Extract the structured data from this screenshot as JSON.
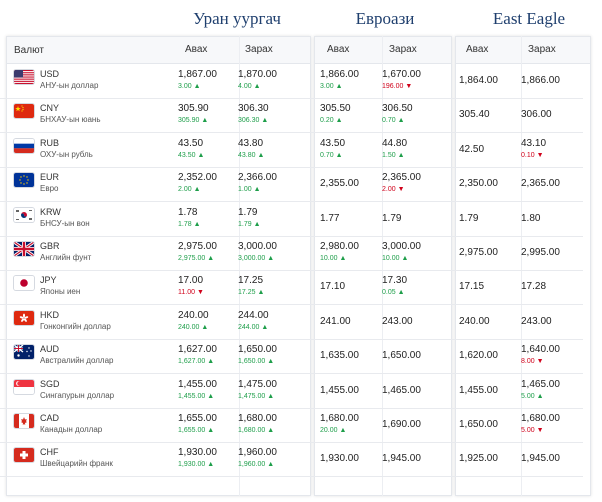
{
  "banks": [
    {
      "name": "Уран уургач",
      "buy_label": "Авах",
      "sell_label": "Зарах"
    },
    {
      "name": "Евроази",
      "buy_label": "Авах",
      "sell_label": "Зарах"
    },
    {
      "name": "East Eagle",
      "buy_label": "Авах",
      "sell_label": "Зарах"
    }
  ],
  "currency_header": "Валют",
  "rows": [
    {
      "code": "USD",
      "name": "АНУ-ын доллар",
      "flag_icon": "us-flag-icon",
      "b1_buy": "1,867.00",
      "b1_buy_chg": "3.00",
      "b1_buy_dir": "up",
      "b1_sell": "1,870.00",
      "b1_sell_chg": "4.00",
      "b1_sell_dir": "up",
      "b2_buy": "1,866.00",
      "b2_buy_chg": "3.00",
      "b2_buy_dir": "up",
      "b2_sell": "1,670.00",
      "b2_sell_chg": "196.00",
      "b2_sell_dir": "down",
      "b3_buy": "1,864.00",
      "b3_buy_chg": "",
      "b3_buy_dir": "",
      "b3_sell": "1,866.00",
      "b3_sell_chg": "",
      "b3_sell_dir": ""
    },
    {
      "code": "CNY",
      "name": "БНХАУ-ын юань",
      "flag_icon": "cn-flag-icon",
      "b1_buy": "305.90",
      "b1_buy_chg": "305.90",
      "b1_buy_dir": "up",
      "b1_sell": "306.30",
      "b1_sell_chg": "306.30",
      "b1_sell_dir": "up",
      "b2_buy": "305.50",
      "b2_buy_chg": "0.20",
      "b2_buy_dir": "up",
      "b2_sell": "306.50",
      "b2_sell_chg": "0.70",
      "b2_sell_dir": "up",
      "b3_buy": "305.40",
      "b3_buy_chg": "",
      "b3_buy_dir": "",
      "b3_sell": "306.00",
      "b3_sell_chg": "",
      "b3_sell_dir": ""
    },
    {
      "code": "RUB",
      "name": "ОХУ-ын рубль",
      "flag_icon": "ru-flag-icon",
      "b1_buy": "43.50",
      "b1_buy_chg": "43.50",
      "b1_buy_dir": "up",
      "b1_sell": "43.80",
      "b1_sell_chg": "43.80",
      "b1_sell_dir": "up",
      "b2_buy": "43.50",
      "b2_buy_chg": "0.70",
      "b2_buy_dir": "up",
      "b2_sell": "44.80",
      "b2_sell_chg": "1.50",
      "b2_sell_dir": "up",
      "b3_buy": "42.50",
      "b3_buy_chg": "",
      "b3_buy_dir": "",
      "b3_sell": "43.10",
      "b3_sell_chg": "0.10",
      "b3_sell_dir": "down"
    },
    {
      "code": "EUR",
      "name": "Евро",
      "flag_icon": "eu-flag-icon",
      "b1_buy": "2,352.00",
      "b1_buy_chg": "2.00",
      "b1_buy_dir": "up",
      "b1_sell": "2,366.00",
      "b1_sell_chg": "1.00",
      "b1_sell_dir": "up",
      "b2_buy": "2,355.00",
      "b2_buy_chg": "",
      "b2_buy_dir": "",
      "b2_sell": "2,365.00",
      "b2_sell_chg": "2.00",
      "b2_sell_dir": "down",
      "b3_buy": "2,350.00",
      "b3_buy_chg": "",
      "b3_buy_dir": "",
      "b3_sell": "2,365.00",
      "b3_sell_chg": "",
      "b3_sell_dir": ""
    },
    {
      "code": "KRW",
      "name": "БНСУ-ын вон",
      "flag_icon": "kr-flag-icon",
      "b1_buy": "1.78",
      "b1_buy_chg": "1.78",
      "b1_buy_dir": "up",
      "b1_sell": "1.79",
      "b1_sell_chg": "1.79",
      "b1_sell_dir": "up",
      "b2_buy": "1.77",
      "b2_buy_chg": "",
      "b2_buy_dir": "",
      "b2_sell": "1.79",
      "b2_sell_chg": "",
      "b2_sell_dir": "",
      "b3_buy": "1.79",
      "b3_buy_chg": "",
      "b3_buy_dir": "",
      "b3_sell": "1.80",
      "b3_sell_chg": "",
      "b3_sell_dir": ""
    },
    {
      "code": "GBR",
      "name": "Английн фунт",
      "flag_icon": "gb-flag-icon",
      "b1_buy": "2,975.00",
      "b1_buy_chg": "2,975.00",
      "b1_buy_dir": "up",
      "b1_sell": "3,000.00",
      "b1_sell_chg": "3,000.00",
      "b1_sell_dir": "up",
      "b2_buy": "2,980.00",
      "b2_buy_chg": "10.00",
      "b2_buy_dir": "up",
      "b2_sell": "3,000.00",
      "b2_sell_chg": "10.00",
      "b2_sell_dir": "up",
      "b3_buy": "2,975.00",
      "b3_buy_chg": "",
      "b3_buy_dir": "",
      "b3_sell": "2,995.00",
      "b3_sell_chg": "",
      "b3_sell_dir": ""
    },
    {
      "code": "JPY",
      "name": "Японы иен",
      "flag_icon": "jp-flag-icon",
      "b1_buy": "17.00",
      "b1_buy_chg": "11.00",
      "b1_buy_dir": "down",
      "b1_sell": "17.25",
      "b1_sell_chg": "17.25",
      "b1_sell_dir": "up",
      "b2_buy": "17.10",
      "b2_buy_chg": "",
      "b2_buy_dir": "",
      "b2_sell": "17.30",
      "b2_sell_chg": "0.05",
      "b2_sell_dir": "up",
      "b3_buy": "17.15",
      "b3_buy_chg": "",
      "b3_buy_dir": "",
      "b3_sell": "17.28",
      "b3_sell_chg": "",
      "b3_sell_dir": ""
    },
    {
      "code": "HKD",
      "name": "Гонконгийн доллар",
      "flag_icon": "hk-flag-icon",
      "b1_buy": "240.00",
      "b1_buy_chg": "240.00",
      "b1_buy_dir": "up",
      "b1_sell": "244.00",
      "b1_sell_chg": "244.00",
      "b1_sell_dir": "up",
      "b2_buy": "241.00",
      "b2_buy_chg": "",
      "b2_buy_dir": "",
      "b2_sell": "243.00",
      "b2_sell_chg": "",
      "b2_sell_dir": "",
      "b3_buy": "240.00",
      "b3_buy_chg": "",
      "b3_buy_dir": "",
      "b3_sell": "243.00",
      "b3_sell_chg": "",
      "b3_sell_dir": ""
    },
    {
      "code": "AUD",
      "name": "Австралийн доллар",
      "flag_icon": "au-flag-icon",
      "b1_buy": "1,627.00",
      "b1_buy_chg": "1,627.00",
      "b1_buy_dir": "up",
      "b1_sell": "1,650.00",
      "b1_sell_chg": "1,650.00",
      "b1_sell_dir": "up",
      "b2_buy": "1,635.00",
      "b2_buy_chg": "",
      "b2_buy_dir": "",
      "b2_sell": "1,650.00",
      "b2_sell_chg": "",
      "b2_sell_dir": "",
      "b3_buy": "1,620.00",
      "b3_buy_chg": "",
      "b3_buy_dir": "",
      "b3_sell": "1,640.00",
      "b3_sell_chg": "8.00",
      "b3_sell_dir": "down"
    },
    {
      "code": "SGD",
      "name": "Сингапурын доллар",
      "flag_icon": "sg-flag-icon",
      "b1_buy": "1,455.00",
      "b1_buy_chg": "1,455.00",
      "b1_buy_dir": "up",
      "b1_sell": "1,475.00",
      "b1_sell_chg": "1,475.00",
      "b1_sell_dir": "up",
      "b2_buy": "1,455.00",
      "b2_buy_chg": "",
      "b2_buy_dir": "",
      "b2_sell": "1,465.00",
      "b2_sell_chg": "",
      "b2_sell_dir": "",
      "b3_buy": "1,455.00",
      "b3_buy_chg": "",
      "b3_buy_dir": "",
      "b3_sell": "1,465.00",
      "b3_sell_chg": "5.00",
      "b3_sell_dir": "up"
    },
    {
      "code": "CAD",
      "name": "Канадын доллар",
      "flag_icon": "ca-flag-icon",
      "b1_buy": "1,655.00",
      "b1_buy_chg": "1,655.00",
      "b1_buy_dir": "up",
      "b1_sell": "1,680.00",
      "b1_sell_chg": "1,680.00",
      "b1_sell_dir": "up",
      "b2_buy": "1,680.00",
      "b2_buy_chg": "20.00",
      "b2_buy_dir": "up",
      "b2_sell": "1,690.00",
      "b2_sell_chg": "",
      "b2_sell_dir": "",
      "b3_buy": "1,650.00",
      "b3_buy_chg": "",
      "b3_buy_dir": "",
      "b3_sell": "1,680.00",
      "b3_sell_chg": "5.00",
      "b3_sell_dir": "down"
    },
    {
      "code": "CHF",
      "name": "Швейцарийн франк",
      "flag_icon": "ch-flag-icon",
      "b1_buy": "1,930.00",
      "b1_buy_chg": "1,930.00",
      "b1_buy_dir": "up",
      "b1_sell": "1,960.00",
      "b1_sell_chg": "1,960.00",
      "b1_sell_dir": "up",
      "b2_buy": "1,930.00",
      "b2_buy_chg": "",
      "b2_buy_dir": "",
      "b2_sell": "1,945.00",
      "b2_sell_chg": "",
      "b2_sell_dir": "",
      "b3_buy": "1,925.00",
      "b3_buy_chg": "",
      "b3_buy_dir": "",
      "b3_sell": "1,945.00",
      "b3_sell_chg": "",
      "b3_sell_dir": ""
    }
  ],
  "colors": {
    "title": "#1f3f6e",
    "up": "#1e9e4a",
    "down": "#d0021b"
  }
}
